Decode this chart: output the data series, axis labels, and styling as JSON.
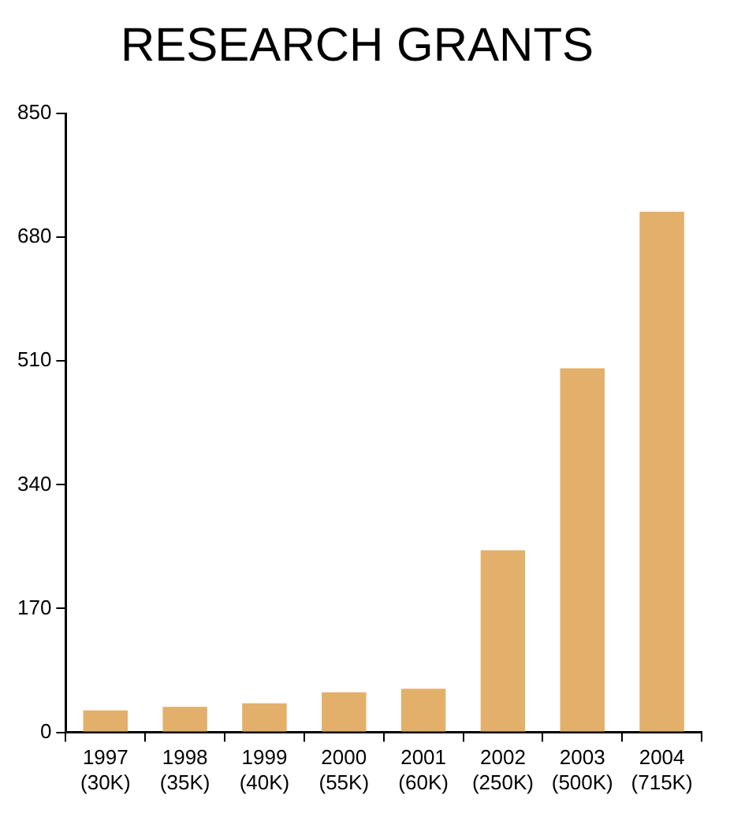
{
  "chart_data": {
    "type": "bar",
    "title": "RESEARCH GRANTS",
    "categories": [
      "1997\n(30K)",
      "1998\n(35K)",
      "1999\n(40K)",
      "2000\n(55K)",
      "2001\n(60K)",
      "2002\n(250K)",
      "2003\n(500K)",
      "2004\n(715K)"
    ],
    "values": [
      30,
      35,
      40,
      55,
      60,
      250,
      500,
      715
    ],
    "color": "#e2b06a",
    "ylim": [
      0,
      850
    ],
    "yticks": [
      0,
      170,
      340,
      510,
      680,
      850
    ],
    "grid": false,
    "legend": false
  }
}
